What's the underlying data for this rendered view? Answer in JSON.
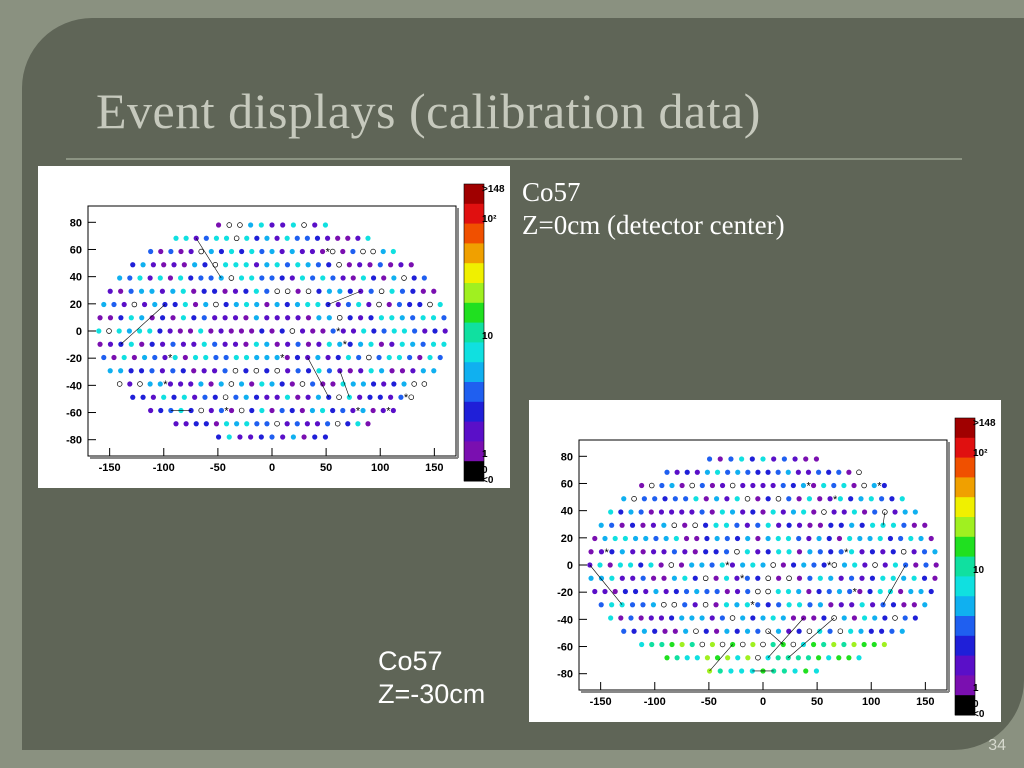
{
  "slide": {
    "title": "Event displays (calibration data)",
    "page_number": "34"
  },
  "captions": [
    {
      "line1": "Co57",
      "line2": "Z=0cm (detector center)"
    },
    {
      "line1": "Co57",
      "line2": "Z=-30cm"
    }
  ],
  "chart_data": [
    {
      "type": "scatter",
      "title": "",
      "xlabel": "",
      "ylabel": "",
      "xlim": [
        -170,
        170
      ],
      "ylim": [
        -92,
        92
      ],
      "x_ticks": [
        -150,
        -100,
        -50,
        0,
        50,
        100,
        150
      ],
      "y_ticks": [
        80,
        60,
        40,
        20,
        0,
        -20,
        -40,
        -60,
        -80
      ],
      "x_tick_labels": [
        "-150",
        "-100",
        "-50",
        "0",
        "50",
        "100",
        "150"
      ],
      "y_tick_labels": [
        "80",
        "60",
        "40",
        "20",
        "0",
        "-20",
        "-40",
        "-60",
        "-80"
      ],
      "layout": "PMT hit map on elliptical grid (semi-axes 160 x 80)",
      "marker_scale": {
        "type": "log",
        "min": 0,
        "max": 148,
        "labels": [
          ">148",
          "10²",
          "10",
          "1",
          "0",
          "<0"
        ]
      },
      "color_bias": "uniform",
      "grid": false
    },
    {
      "type": "scatter",
      "title": "",
      "xlabel": "",
      "ylabel": "",
      "xlim": [
        -170,
        170
      ],
      "ylim": [
        -92,
        92
      ],
      "x_ticks": [
        -150,
        -100,
        -50,
        0,
        50,
        100,
        150
      ],
      "y_ticks": [
        80,
        60,
        40,
        20,
        0,
        -20,
        -40,
        -60,
        -80
      ],
      "x_tick_labels": [
        "-150",
        "-100",
        "-50",
        "0",
        "50",
        "100",
        "150"
      ],
      "y_tick_labels": [
        "80",
        "60",
        "40",
        "20",
        "0",
        "-20",
        "-40",
        "-60",
        "-80"
      ],
      "layout": "PMT hit map on elliptical grid (semi-axes 160 x 80)",
      "marker_scale": {
        "type": "log",
        "min": 0,
        "max": 148,
        "labels": [
          ">148",
          "10²",
          "10",
          "1",
          "0",
          "<0"
        ]
      },
      "color_bias": "bottom-high",
      "grid": false
    }
  ],
  "colors": {
    "slide_background": "#5f6557",
    "outer_background": "#8a9180",
    "title_text": "#c6c9bd",
    "caption_text": "#ffffff",
    "palette": [
      "#000000",
      "#7a0fb0",
      "#5a0fc8",
      "#1f1fd8",
      "#1f5ff0",
      "#10b0f0",
      "#10e0e0",
      "#10e0a0",
      "#20e020",
      "#a0f020",
      "#f0f000",
      "#f0a000",
      "#f05000",
      "#e01010",
      "#a00000"
    ]
  }
}
